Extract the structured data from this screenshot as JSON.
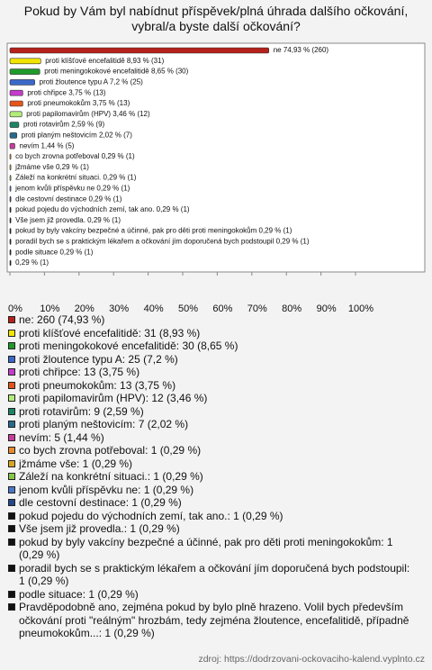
{
  "chart_data": {
    "type": "hbar",
    "title": "Pokud by Vám byl nabídnut příspěvek/plná úhrada dalšího očkování, vybral/a byste další očkování?",
    "categories": [
      "ne: 260 (74,93 %)",
      "proti klíšťové encefalitidě: 31 (8,93 %)",
      "proti meningokokové encefalitidě: 30 (8,65 %)",
      "proti žloutence typu A: 25 (7,2 %)",
      "proti chřipce: 13 (3,75 %)",
      "proti pneumokokům: 13 (3,75 %)",
      "proti papilomavirům (HPV): 12 (3,46 %)",
      "proti rotavirům: 9 (2,59 %)",
      "proti planým neštovicím: 7 (2,02 %)",
      "nevím: 5 (1,44 %)",
      "co bych zrovna potřeboval: 1 (0,29 %)",
      "jžmáme vše: 1 (0,29 %)",
      "Záleží na konkrétní situaci.: 1 (0,29 %)",
      "jenom kvůli příspěvku ne: 1 (0,29 %)",
      "dle cestovní destinace: 1 (0,29 %)",
      "pokud pojedu do východních zemí, tak ano.: 1 (0,29 %)",
      "Vše jsem již provedla.: 1 (0,29 %)",
      "pokud by byly vakcíny bezpečné a účinné, pak pro děti proti meningokokům: 1 (0,29 %)",
      "poradil bych se s praktickým lékařem a očkování jím doporučená bych podstoupil: 1 (0,29 %)",
      "podle situace: 1 (0,29 %)",
      "Pravděpodobně ano, zejména pokud by bylo plně hrazeno. Volil bych především očkování proti \"reálným\" hrozbám, tedy zejména žloutence, encefalitidě, případně pneumokokům...: 1 (0,29 %)"
    ],
    "values": [
      74.93,
      8.93,
      8.65,
      7.2,
      3.75,
      3.75,
      3.46,
      2.59,
      2.02,
      1.44,
      0.29,
      0.29,
      0.29,
      0.29,
      0.29,
      0.29,
      0.29,
      0.29,
      0.29,
      0.29,
      0.29
    ],
    "value_labels": [
      "ne 74,93 % (260)",
      "proti klíšťové encefalitidě 8,93 % (31)",
      "proti meningokokové encefalitidě 8,65 % (30)",
      "proti žloutence typu A 7,2 % (25)",
      "proti chřipce 3,75 % (13)",
      "proti pneumokokům 3,75 % (13)",
      "proti papilomavirům (HPV) 3,46 % (12)",
      "proti rotavirům 2,59 % (9)",
      "proti planým neštovicím 2,02 % (7)",
      "nevím 1,44 % (5)",
      "co bych zrovna potřeboval 0,29 % (1)",
      "jžmáme vše 0,29 % (1)",
      "Záleží na konkrétní situaci. 0,29 % (1)",
      "jenom kvůli příspěvku ne 0,29 % (1)",
      "dle cestovní destinace 0,29 % (1)",
      "pokud pojedu do východních zemí, tak ano. 0,29 % (1)",
      "Vše jsem již provedla. 0,29 % (1)",
      "pokud by byly vakcíny bezpečné a účinné, pak pro děti proti meningokokům 0,29 % (1)",
      "poradil bych se s praktickým lékařem a očkování jím doporučená bych podstoupil 0,29 % (1)",
      "podle situace 0,29 % (1)",
      "0,29 % (1)"
    ],
    "colors": [
      "#b5211b",
      "#f2e400",
      "#1f9a2a",
      "#3a68c8",
      "#c43ccc",
      "#e2541c",
      "#b2ec7a",
      "#1d8466",
      "#27698c",
      "#c83c9c",
      "#e88a2e",
      "#d8a526",
      "#86c84a",
      "#4a78c8",
      "#24468a",
      "#111111",
      "#111111",
      "#111111",
      "#111111",
      "#111111",
      "#111111"
    ],
    "xlim": [
      0,
      100
    ],
    "xticks": [
      {
        "value": 0,
        "label": "0%"
      },
      {
        "value": 10,
        "label": "10%"
      },
      {
        "value": 20,
        "label": "20%"
      },
      {
        "value": 30,
        "label": "30%"
      },
      {
        "value": 40,
        "label": "40%"
      },
      {
        "value": 50,
        "label": "50%"
      },
      {
        "value": 60,
        "label": "60%"
      },
      {
        "value": 70,
        "label": "70%"
      },
      {
        "value": 80,
        "label": "80%"
      },
      {
        "value": 90,
        "label": "90%"
      },
      {
        "value": 100,
        "label": "100%"
      }
    ],
    "source": "zdroj: https://dodrzovani-ockovaciho-kalend.vyplnto.cz"
  }
}
